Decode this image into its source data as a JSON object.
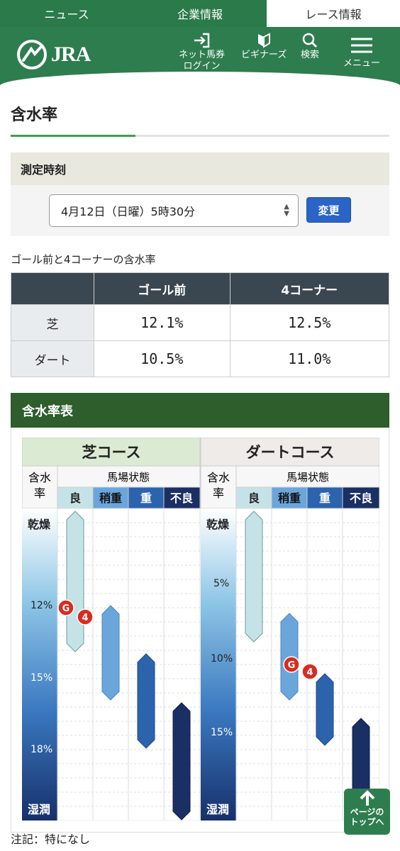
{
  "topnav": {
    "tabs": [
      "ニュース",
      "企業情報",
      "レース情報"
    ]
  },
  "header": {
    "logo_text": "JRA",
    "login_label_1": "ネット馬券",
    "login_label_2": "ログイン",
    "beginners_label": "ビギナーズ",
    "search_label": "検索",
    "menu_label": "メニュー"
  },
  "page_title": "含水率",
  "measurement": {
    "heading": "測定時刻",
    "selected_time": "4月12日（日曜）5時30分",
    "change_button": "変更"
  },
  "moisture_table": {
    "caption": "ゴール前と4コーナーの含水率",
    "columns": [
      "ゴール前",
      "4コーナー"
    ],
    "rows": [
      {
        "label": "芝",
        "values": [
          "12.1%",
          "12.5%"
        ]
      },
      {
        "label": "ダート",
        "values": [
          "10.5%",
          "11.0%"
        ]
      }
    ]
  },
  "chart_section": {
    "title": "含水率表",
    "turf": {
      "title": "芝コース",
      "axis_header_1": "含水",
      "axis_header_2": "率",
      "status_header": "馬場状態",
      "conditions": [
        "良",
        "稍重",
        "重",
        "不良"
      ],
      "dry_label": "乾燥",
      "wet_label": "湿潤",
      "ticks": [
        "12%",
        "15%",
        "18%"
      ],
      "marker_g": "G",
      "marker_4": "4"
    },
    "dirt": {
      "title": "ダートコース",
      "axis_header_1": "含水",
      "axis_header_2": "率",
      "status_header": "馬場状態",
      "conditions": [
        "良",
        "稍重",
        "重",
        "不良"
      ],
      "dry_label": "乾燥",
      "wet_label": "湿潤",
      "ticks": [
        "5%",
        "10%",
        "15%"
      ],
      "marker_g": "G",
      "marker_4": "4"
    },
    "colors": {
      "good": "#c5e3e6",
      "slightly_heavy": "#6aa6db",
      "heavy": "#2c63ad",
      "bad": "#1a2f63"
    }
  },
  "note": "注記：特になし",
  "page_top": {
    "line1": "ページの",
    "line2": "トップへ"
  }
}
